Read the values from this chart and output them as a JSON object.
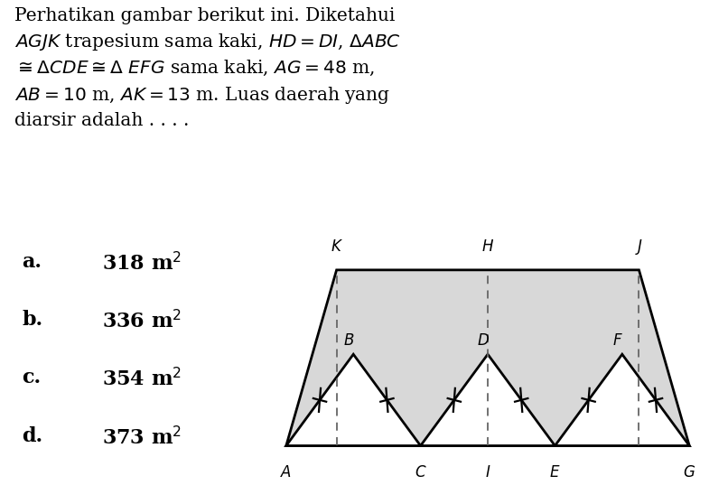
{
  "bg_color": "#ffffff",
  "shaded_color": "#d8d8d8",
  "line_color": "#000000",
  "dashed_color": "#666666",
  "AG": 48,
  "AB": 10,
  "AK": 13,
  "KJ": 36,
  "triangle_base": 16,
  "para_lines": [
    "Perhatikan gambar berikut ini. Diketahui",
    "$AGJK$ trapesium sama kaki, $HD = DI$, $\\Delta ABC$",
    "$\\cong \\Delta CDE \\cong \\Delta\\ EFG$ sama kaki, $AG = 48$ m,",
    "$AB = 10$ m, $AK = 13$ m. Luas daerah yang",
    "diarsir adalah . . . ."
  ],
  "options_letters": [
    "a.",
    "b.",
    "c.",
    "d."
  ],
  "options_values": [
    "318 m$^2$",
    "336 m$^2$",
    "354 m$^2$",
    "373 m$^2$"
  ]
}
